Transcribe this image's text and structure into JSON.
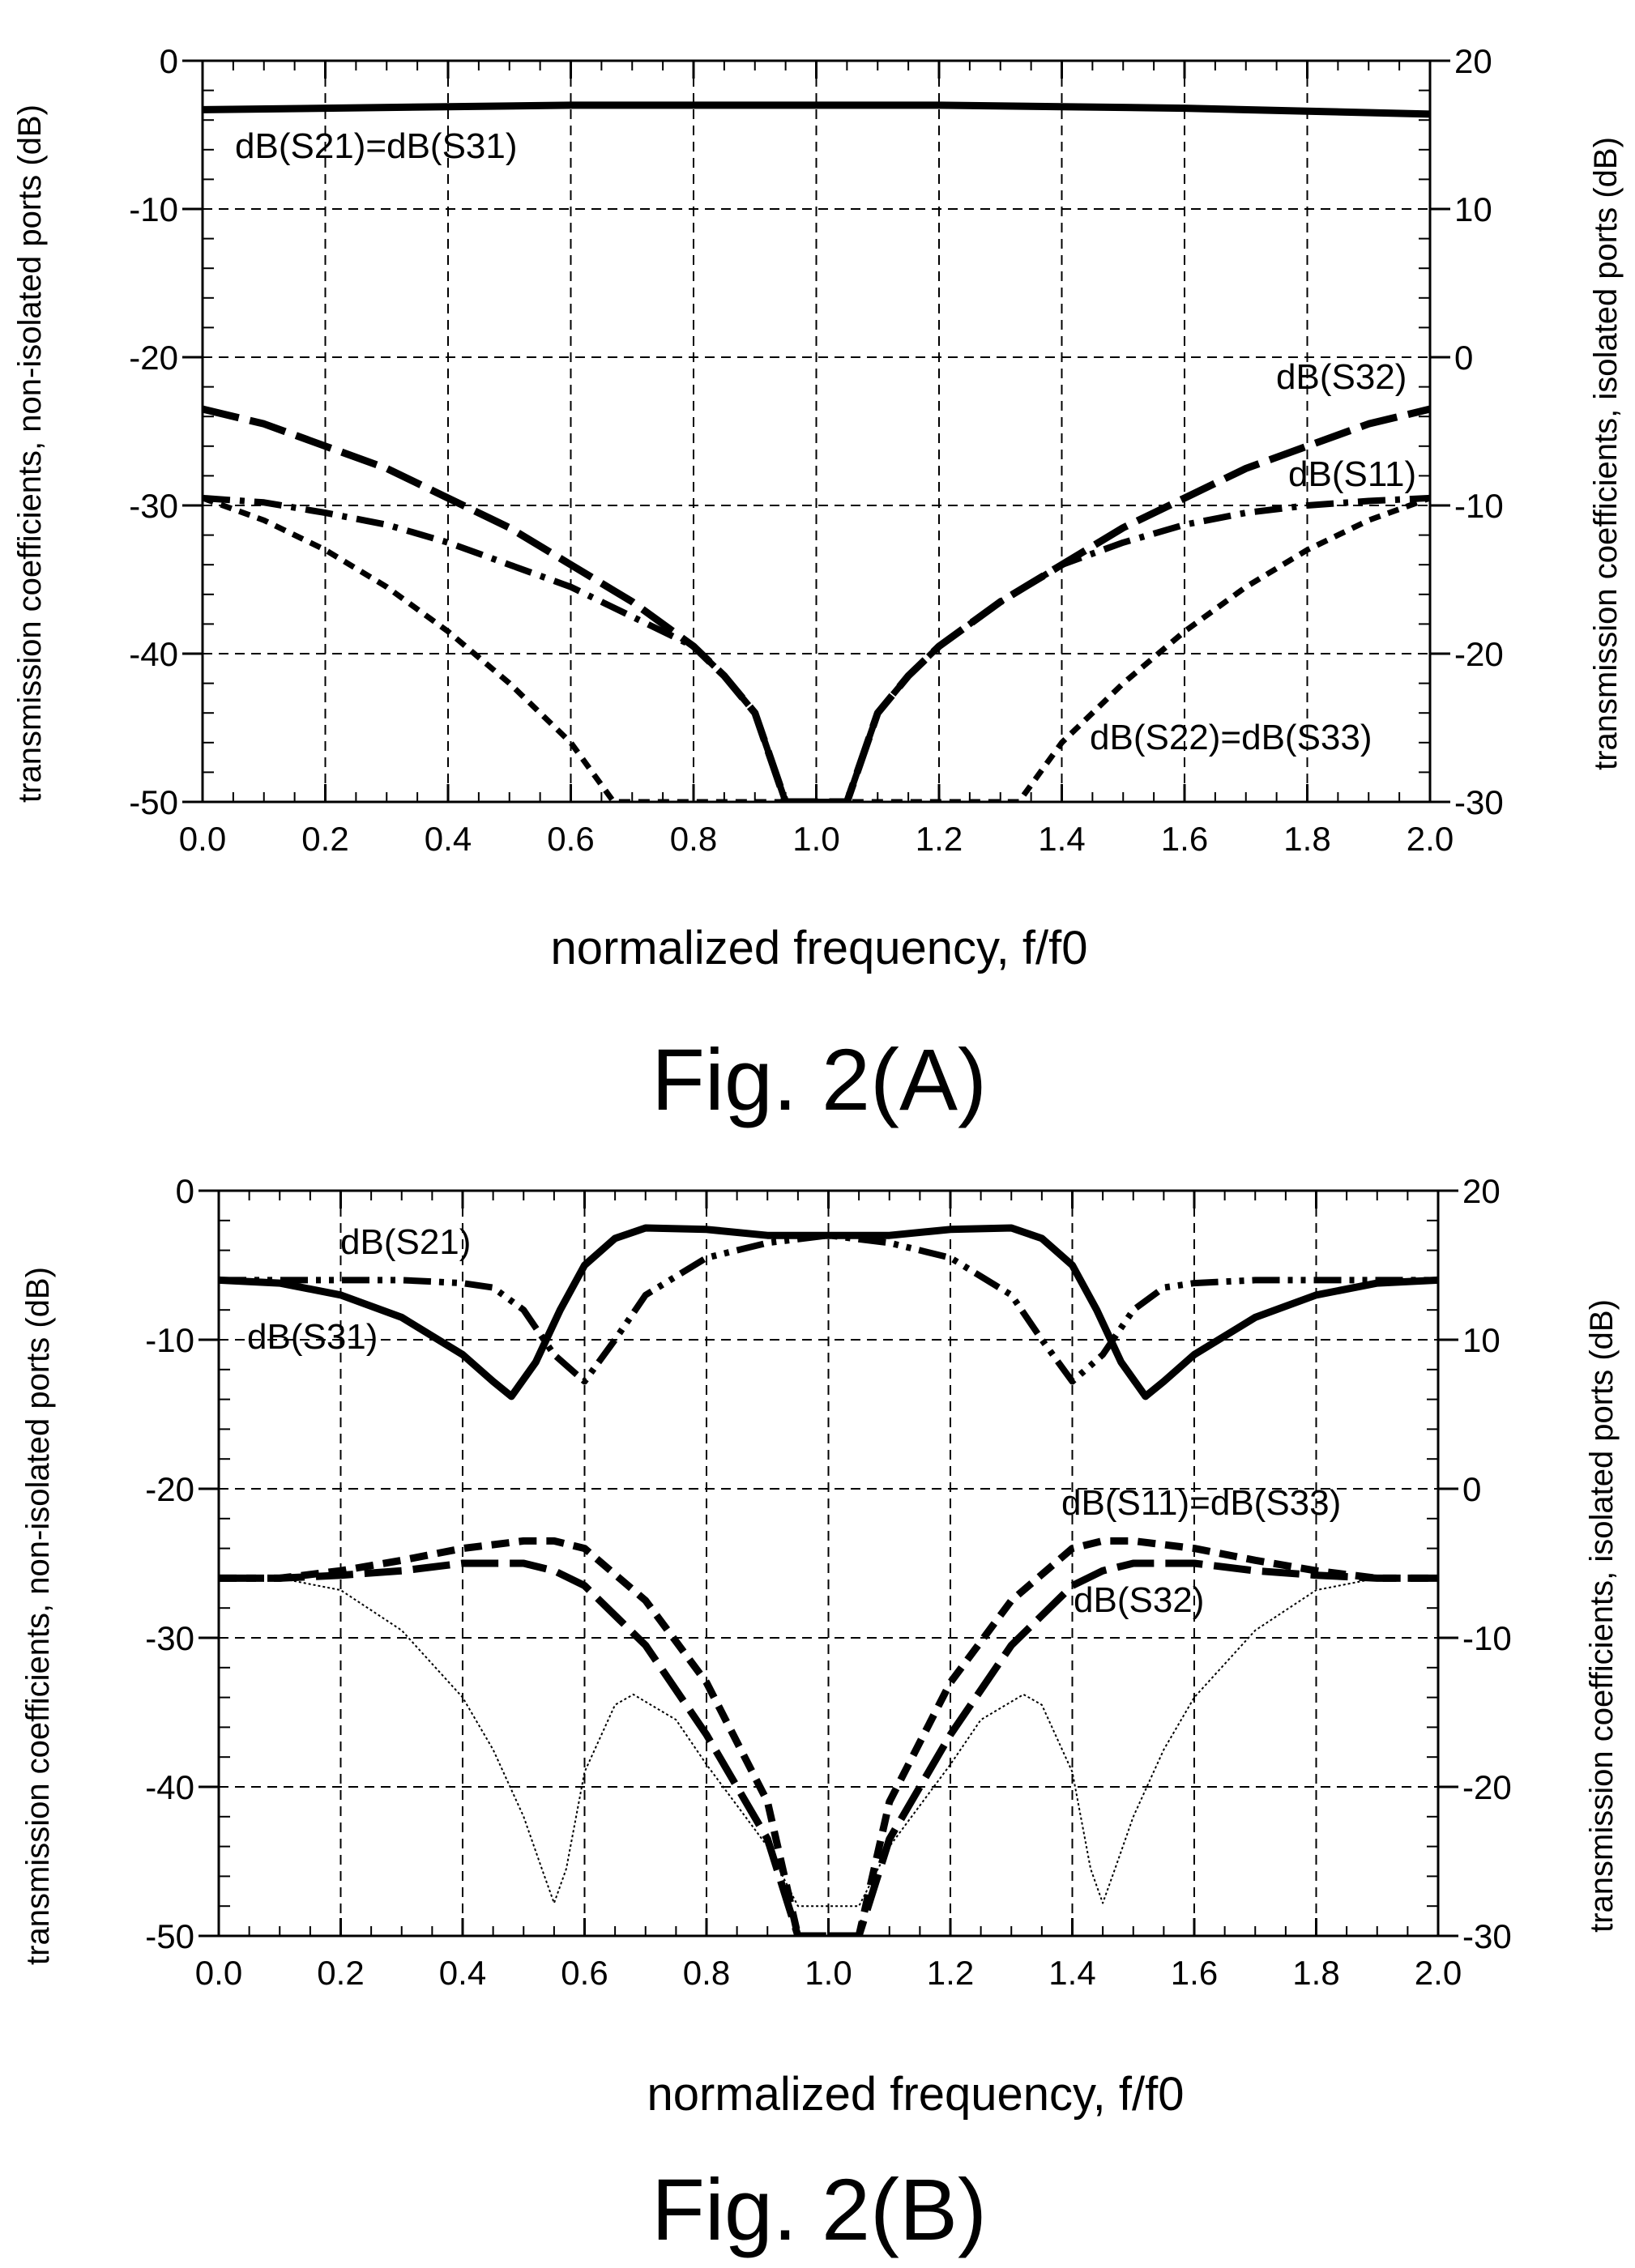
{
  "chart_data": [
    {
      "type": "line",
      "caption": "Fig. 2(A)",
      "xlabel": "normalized frequency, f/f0",
      "ylabel": "transmission coefficients, non-isolated ports (dB)",
      "y2label": "transmission coefficients, isolated ports (dB)",
      "xlim": [
        0.0,
        2.0
      ],
      "ylim": [
        -50,
        0
      ],
      "y2lim": [
        -30,
        20
      ],
      "xticks": [
        "0.0",
        "0.2",
        "0.4",
        "0.6",
        "0.8",
        "1.0",
        "1.2",
        "1.4",
        "1.6",
        "1.8",
        "2.0"
      ],
      "yticks": [
        "0",
        "-10",
        "-20",
        "-30",
        "-40",
        "-50"
      ],
      "y2ticks": [
        "20",
        "10",
        "0",
        "-10",
        "-20",
        "-30"
      ],
      "grid": true,
      "series": [
        {
          "name": "dB(S21)=dB(S31)",
          "axis": "left",
          "style": "solid-thick",
          "x": [
            0.0,
            0.2,
            0.4,
            0.6,
            0.8,
            1.0,
            1.2,
            1.4,
            1.6,
            1.8,
            2.0
          ],
          "y": [
            -3.3,
            -3.2,
            -3.1,
            -3.0,
            -3.0,
            -3.0,
            -3.0,
            -3.1,
            -3.2,
            -3.4,
            -3.6
          ]
        },
        {
          "name": "dB(S32)",
          "axis": "right",
          "style": "long-dash",
          "x": [
            0.0,
            0.1,
            0.2,
            0.3,
            0.4,
            0.5,
            0.6,
            0.7,
            0.8,
            0.85,
            0.9,
            0.95,
            1.05,
            1.1,
            1.15,
            1.2,
            1.3,
            1.4,
            1.5,
            1.6,
            1.7,
            1.8,
            1.9,
            2.0
          ],
          "y": [
            -3.5,
            -4.5,
            -6.0,
            -7.5,
            -9.5,
            -11.5,
            -14.0,
            -16.5,
            -19.5,
            -21.5,
            -24.0,
            -30.0,
            -30.0,
            -24.0,
            -21.5,
            -19.5,
            -16.5,
            -14.0,
            -11.5,
            -9.5,
            -7.5,
            -6.0,
            -4.5,
            -3.5
          ]
        },
        {
          "name": "dB(S11)",
          "axis": "left",
          "style": "dash-dot",
          "x": [
            0.0,
            0.1,
            0.2,
            0.3,
            0.4,
            0.5,
            0.6,
            0.7,
            0.8,
            0.85,
            0.9,
            0.95,
            1.05,
            1.1,
            1.15,
            1.2,
            1.3,
            1.4,
            1.5,
            1.6,
            1.7,
            1.8,
            1.9,
            2.0
          ],
          "y": [
            -29.5,
            -29.8,
            -30.5,
            -31.3,
            -32.5,
            -34.0,
            -35.5,
            -37.5,
            -39.5,
            -41.5,
            -44.0,
            -50.0,
            -50.0,
            -44.0,
            -41.5,
            -39.5,
            -36.5,
            -34.0,
            -32.5,
            -31.3,
            -30.5,
            -30.0,
            -29.7,
            -29.5
          ]
        },
        {
          "name": "dB(S22)=dB(S33)",
          "axis": "left",
          "style": "short-dash",
          "x": [
            0.0,
            0.1,
            0.2,
            0.3,
            0.4,
            0.5,
            0.6,
            0.67,
            1.33,
            1.4,
            1.5,
            1.6,
            1.7,
            1.8,
            1.9,
            2.0
          ],
          "y": [
            -29.5,
            -31.0,
            -33.0,
            -35.5,
            -38.5,
            -42.0,
            -46.0,
            -50.0,
            -50.0,
            -46.0,
            -42.0,
            -38.5,
            -35.5,
            -33.0,
            -31.0,
            -29.5
          ]
        }
      ],
      "annotations": [
        "dB(S21)=dB(S31)",
        "dB(S32)",
        "dB(S11)",
        "dB(S22)=dB(S33)"
      ]
    },
    {
      "type": "line",
      "caption": "Fig. 2(B)",
      "xlabel": "normalized frequency, f/f0",
      "ylabel": "transmission coefficients, non-isolated ports (dB)",
      "y2label": "transmission coefficients, isolated ports (dB)",
      "xlim": [
        0.0,
        2.0
      ],
      "ylim": [
        -50,
        0
      ],
      "y2lim": [
        -30,
        20
      ],
      "xticks": [
        "0.0",
        "0.2",
        "0.4",
        "0.6",
        "0.8",
        "1.0",
        "1.2",
        "1.4",
        "1.6",
        "1.8",
        "2.0"
      ],
      "yticks": [
        "0",
        "-10",
        "-20",
        "-30",
        "-40",
        "-50"
      ],
      "y2ticks": [
        "20",
        "10",
        "0",
        "-10",
        "-20",
        "-30"
      ],
      "grid": true,
      "series": [
        {
          "name": "dB(S31)",
          "axis": "left",
          "style": "solid-thick",
          "x": [
            0.0,
            0.1,
            0.2,
            0.3,
            0.4,
            0.45,
            0.48,
            0.52,
            0.56,
            0.6,
            0.65,
            0.7,
            0.8,
            0.9,
            1.0,
            1.1,
            1.2,
            1.3,
            1.35,
            1.4,
            1.44,
            1.48,
            1.52,
            1.55,
            1.6,
            1.7,
            1.8,
            1.9,
            2.0
          ],
          "y": [
            -6.0,
            -6.2,
            -7.0,
            -8.5,
            -11.0,
            -12.8,
            -13.8,
            -11.5,
            -8.0,
            -5.0,
            -3.2,
            -2.5,
            -2.6,
            -3.0,
            -3.0,
            -3.0,
            -2.6,
            -2.5,
            -3.2,
            -5.0,
            -8.0,
            -11.5,
            -13.8,
            -12.8,
            -11.0,
            -8.5,
            -7.0,
            -6.2,
            -6.0
          ]
        },
        {
          "name": "dB(S21)",
          "axis": "left",
          "style": "dash-dot-dot",
          "x": [
            0.0,
            0.1,
            0.2,
            0.3,
            0.4,
            0.45,
            0.5,
            0.55,
            0.6,
            0.65,
            0.7,
            0.8,
            0.9,
            1.0,
            1.1,
            1.2,
            1.3,
            1.35,
            1.4,
            1.45,
            1.5,
            1.55,
            1.6,
            1.7,
            1.8,
            1.9,
            2.0
          ],
          "y": [
            -6.0,
            -6.0,
            -6.0,
            -6.0,
            -6.2,
            -6.5,
            -8.0,
            -11.0,
            -12.8,
            -10.0,
            -7.0,
            -4.5,
            -3.5,
            -3.0,
            -3.5,
            -4.5,
            -7.0,
            -10.0,
            -12.8,
            -11.0,
            -8.0,
            -6.5,
            -6.2,
            -6.0,
            -6.0,
            -6.0,
            -6.0
          ]
        },
        {
          "name": "dB(S11)=dB(S33)",
          "axis": "left",
          "style": "short-dash-thick",
          "x": [
            0.0,
            0.1,
            0.2,
            0.3,
            0.4,
            0.5,
            0.55,
            0.6,
            0.7,
            0.8,
            0.9,
            0.95,
            1.05,
            1.1,
            1.2,
            1.3,
            1.4,
            1.45,
            1.5,
            1.6,
            1.7,
            1.8,
            1.9,
            2.0
          ],
          "y": [
            -26.0,
            -26.0,
            -25.5,
            -24.8,
            -24.0,
            -23.5,
            -23.5,
            -24.0,
            -27.5,
            -33.0,
            -41.0,
            -50.0,
            -50.0,
            -41.0,
            -33.0,
            -27.5,
            -24.0,
            -23.5,
            -23.5,
            -24.0,
            -24.8,
            -25.5,
            -26.0,
            -26.0
          ]
        },
        {
          "name": "dB(S32)",
          "axis": "right",
          "style": "long-dash",
          "x": [
            0.0,
            0.1,
            0.2,
            0.3,
            0.4,
            0.5,
            0.55,
            0.6,
            0.7,
            0.8,
            0.9,
            0.95,
            1.05,
            1.1,
            1.2,
            1.3,
            1.4,
            1.45,
            1.5,
            1.6,
            1.7,
            1.8,
            1.9,
            2.0
          ],
          "y": [
            -6.0,
            -6.0,
            -5.8,
            -5.5,
            -5.0,
            -5.0,
            -5.5,
            -6.5,
            -10.5,
            -16.5,
            -23.5,
            -30.0,
            -30.0,
            -23.5,
            -16.5,
            -10.5,
            -6.5,
            -5.5,
            -5.0,
            -5.0,
            -5.5,
            -5.8,
            -6.0,
            -6.0
          ]
        },
        {
          "name": "",
          "axis": "left",
          "style": "thin-dotted",
          "x": [
            0.1,
            0.2,
            0.3,
            0.4,
            0.45,
            0.5,
            0.53,
            0.55,
            0.57,
            0.6,
            0.65,
            0.68,
            0.75,
            0.8,
            0.9,
            0.95,
            1.05,
            1.1,
            1.2,
            1.25,
            1.32,
            1.35,
            1.4,
            1.43,
            1.45,
            1.47,
            1.5,
            1.55,
            1.6,
            1.7,
            1.8,
            1.9
          ],
          "y": [
            -26.0,
            -26.8,
            -29.5,
            -34.0,
            -37.5,
            -42.0,
            -45.5,
            -47.8,
            -45.5,
            -39.0,
            -34.5,
            -33.8,
            -35.5,
            -38.5,
            -44.0,
            -48.0,
            -48.0,
            -44.0,
            -38.5,
            -35.5,
            -33.8,
            -34.5,
            -39.0,
            -45.5,
            -47.8,
            -45.5,
            -42.0,
            -37.5,
            -34.0,
            -29.5,
            -26.8,
            -26.0
          ]
        }
      ],
      "annotations": [
        "dB(S21)",
        "dB(S31)",
        "dB(S11)=dB(S33)",
        "dB(S32)"
      ]
    }
  ]
}
